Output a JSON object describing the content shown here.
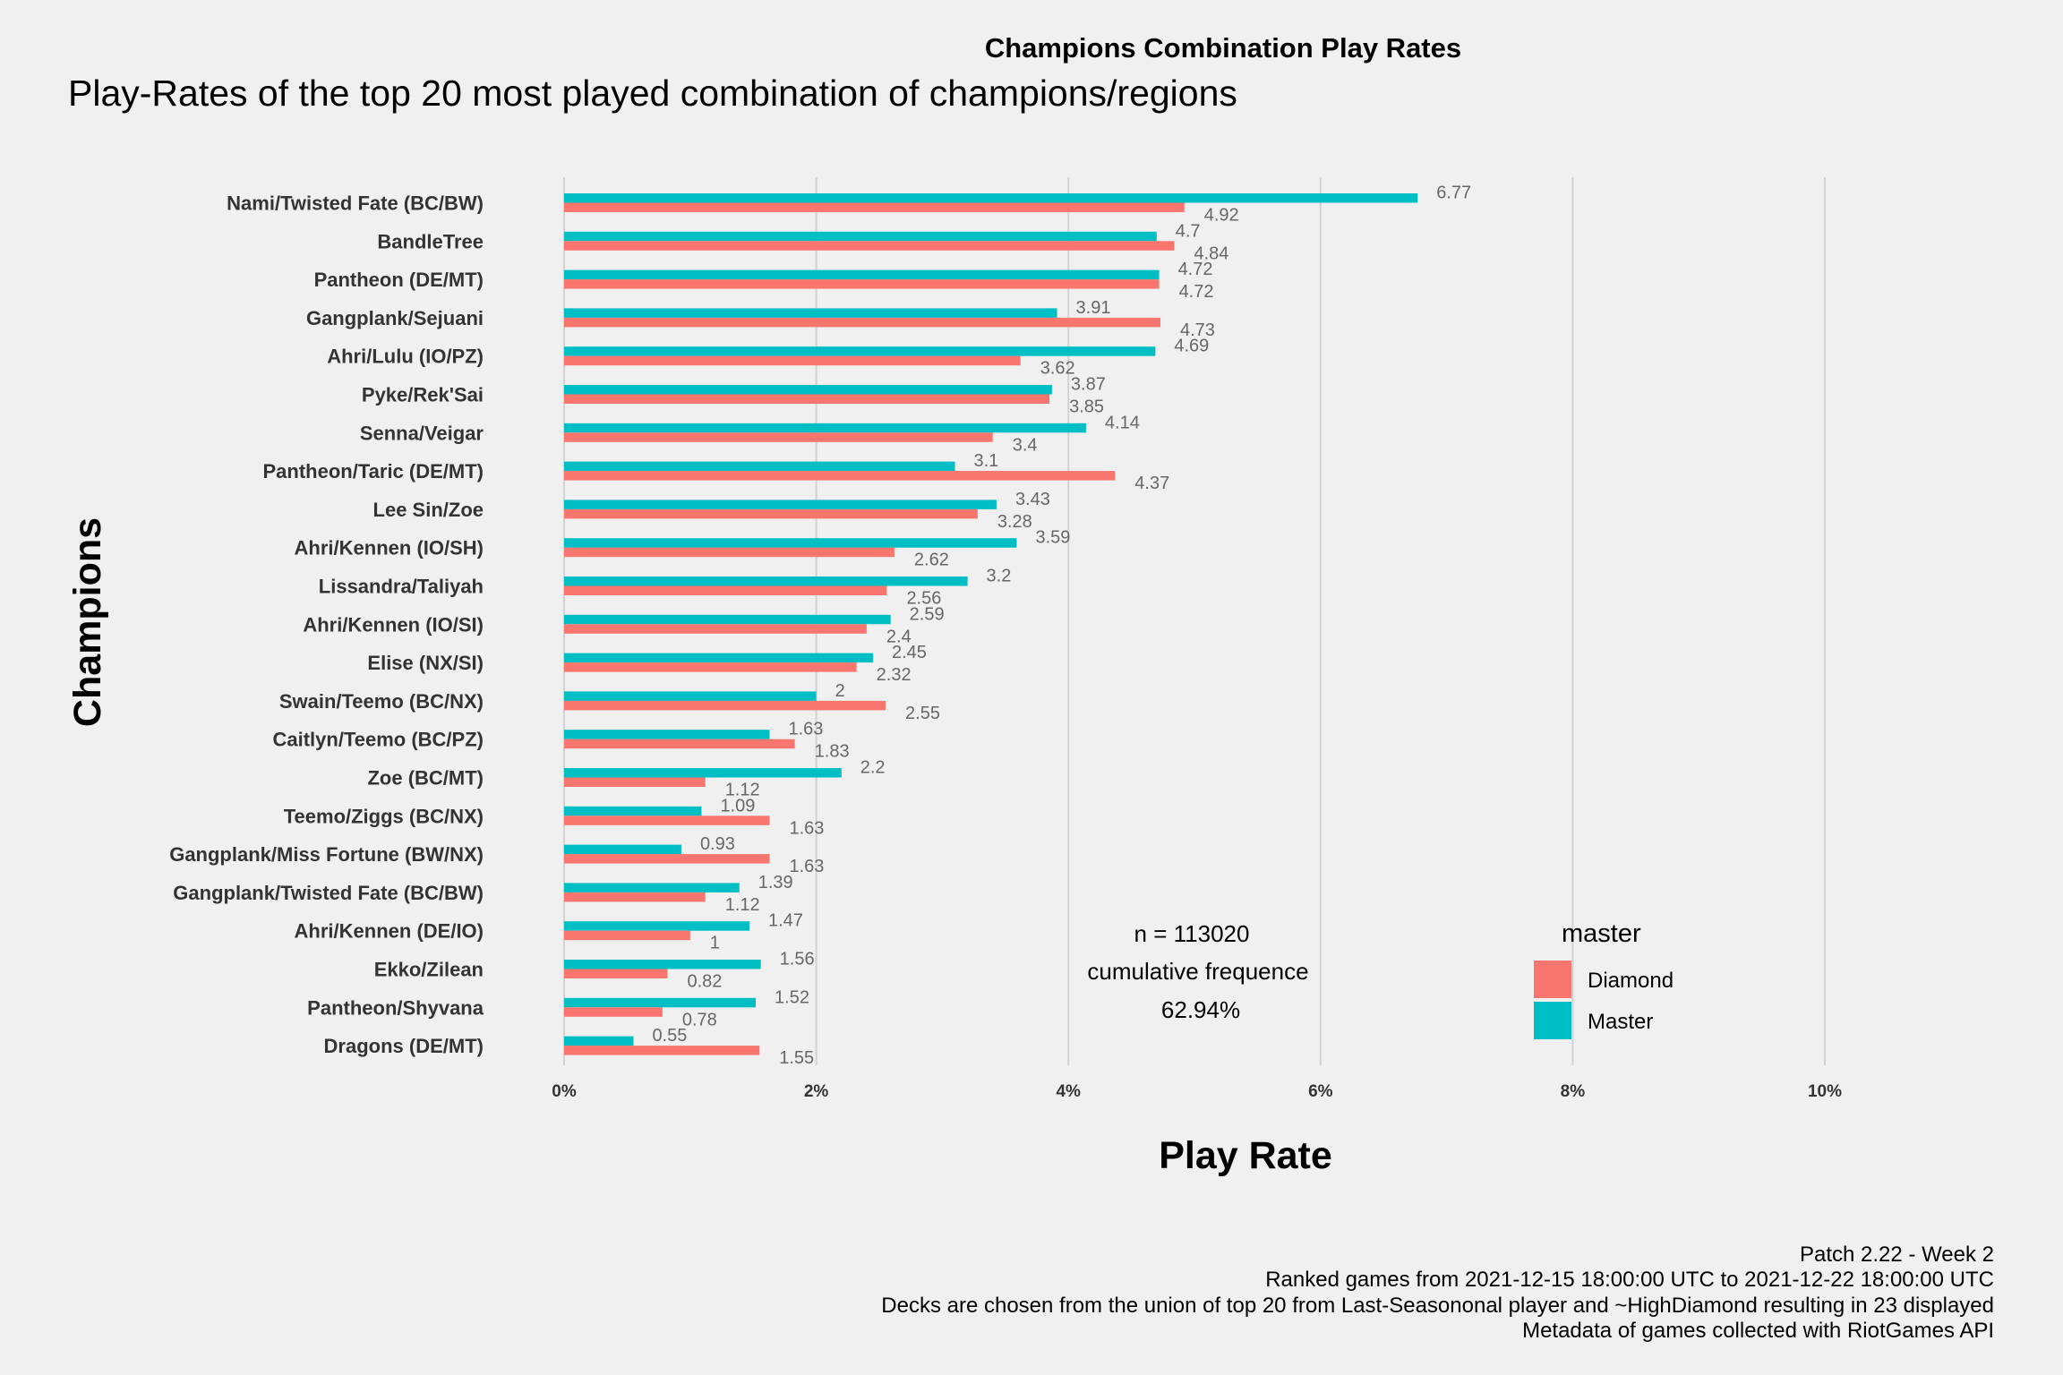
{
  "chart_data": {
    "type": "bar",
    "orientation": "horizontal",
    "suptitle": "Champions Combination Play Rates",
    "title": "Play-Rates of the top 20 most played combination of champions/regions",
    "xlabel": "Play Rate",
    "ylabel": "Champions",
    "xlim": [
      0,
      10
    ],
    "xticks": [
      0,
      2,
      4,
      6,
      8,
      10
    ],
    "xtick_labels": [
      "0%",
      "2%",
      "4%",
      "6%",
      "8%",
      "10%"
    ],
    "grid": "vertical major gridlines",
    "categories": [
      "Nami/Twisted Fate (BC/BW)",
      "BandleTree",
      "Pantheon (DE/MT)",
      "Gangplank/Sejuani",
      "Ahri/Lulu (IO/PZ)",
      "Pyke/Rek'Sai",
      "Senna/Veigar",
      "Pantheon/Taric (DE/MT)",
      "Lee Sin/Zoe",
      "Ahri/Kennen (IO/SH)",
      "Lissandra/Taliyah",
      "Ahri/Kennen (IO/SI)",
      "Elise (NX/SI)",
      "Swain/Teemo (BC/NX)",
      "Caitlyn/Teemo (BC/PZ)",
      "Zoe (BC/MT)",
      "Teemo/Ziggs (BC/NX)",
      "Gangplank/Miss Fortune (BW/NX)",
      "Gangplank/Twisted Fate (BC/BW)",
      "Ahri/Kennen (DE/IO)",
      "Ekko/Zilean",
      "Pantheon/Shyvana",
      "Dragons (DE/MT)"
    ],
    "series": [
      {
        "name": "Master",
        "color": "#00bfc4",
        "values": [
          6.77,
          4.7,
          4.72,
          3.91,
          4.69,
          3.87,
          4.14,
          3.1,
          3.43,
          3.59,
          3.2,
          2.59,
          2.45,
          2,
          1.63,
          2.2,
          1.09,
          0.93,
          1.39,
          1.47,
          1.56,
          1.52,
          0.55
        ],
        "labels": [
          "6.77",
          "4.7",
          "4.72",
          "3.91",
          "4.69",
          "3.87",
          "4.14",
          "3.1",
          "3.43",
          "3.59",
          "3.2",
          "2.59",
          "2.45",
          "2",
          "1.63",
          "2.2",
          "1.09",
          "0.93",
          "1.39",
          "1.47",
          "1.56",
          "1.52",
          "0.55"
        ]
      },
      {
        "name": "Diamond",
        "color": "#f8766d",
        "values": [
          4.92,
          4.84,
          4.72,
          4.73,
          3.62,
          3.85,
          3.4,
          4.37,
          3.28,
          2.62,
          2.56,
          2.4,
          2.32,
          2.55,
          1.83,
          1.12,
          1.63,
          1.63,
          1.12,
          1,
          0.82,
          0.78,
          1.55
        ],
        "labels": [
          "4.92",
          "4.84",
          "4.72",
          "4.73",
          "3.62",
          "3.85",
          "3.4",
          "4.37",
          "3.28",
          "2.62",
          "2.56",
          "2.4",
          "2.32",
          "2.55",
          "1.83",
          "1.12",
          "1.63",
          "1.63",
          "1.12",
          "1",
          "0.82",
          "0.78",
          "1.55"
        ]
      }
    ],
    "legend": {
      "title": "master",
      "placement": "bottom-right inside plot",
      "entries": [
        {
          "label": "Diamond",
          "color": "#f8766d"
        },
        {
          "label": "Master",
          "color": "#00bfc4"
        }
      ]
    },
    "annotation": {
      "lines": [
        "n = 113020",
        "cumulative frequence",
        "62.94%"
      ]
    },
    "caption": [
      "Patch 2.22 - Week 2",
      "Ranked games from 2021-12-15 18:00:00 UTC to 2021-12-22 18:00:00 UTC",
      "Decks are chosen from the union of top 20 from Last-Seasononal player and ~HighDiamond resulting in 23 displayed",
      "Metadata of games collected with RiotGames API"
    ]
  }
}
